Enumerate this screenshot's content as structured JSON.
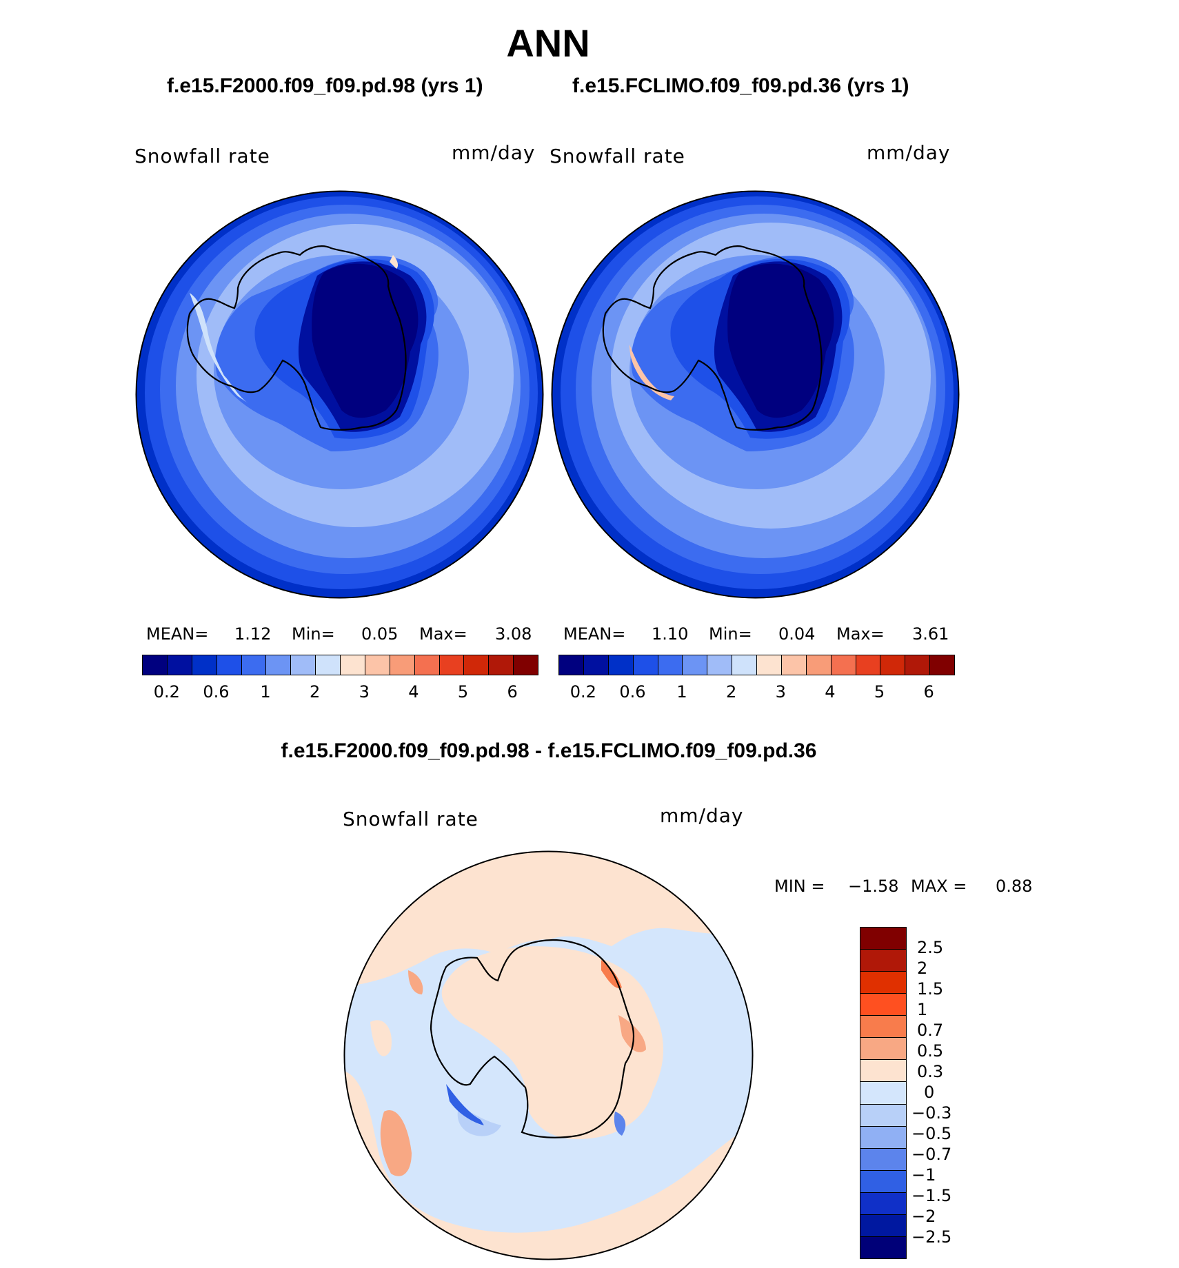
{
  "title": "ANN",
  "panels": [
    {
      "case": "f.e15.F2000.f09_f09.pd.98 (yrs 1)",
      "variable": "Snowfall rate",
      "units": "mm/day",
      "mean_label": "MEAN=",
      "mean": "1.12",
      "min_label": "Min=",
      "min": "0.05",
      "max_label": "Max=",
      "max": "3.08"
    },
    {
      "case": "f.e15.FCLIMO.f09_f09.pd.36 (yrs 1)",
      "variable": "Snowfall rate",
      "units": "mm/day",
      "mean_label": "MEAN=",
      "mean": "1.10",
      "min_label": "Min=",
      "min": "0.04",
      "max_label": "Max=",
      "max": "3.61"
    }
  ],
  "colorbar": {
    "colors": [
      "#00007f",
      "#0010a0",
      "#0030c8",
      "#1e50e8",
      "#3c6cf0",
      "#6c94f4",
      "#a0bcf8",
      "#cfe2fb",
      "#fde3d0",
      "#fcc4a8",
      "#f89c78",
      "#f47050",
      "#e84020",
      "#d02808",
      "#b01808",
      "#800000"
    ],
    "tick_labels": [
      "0.2",
      "0.6",
      "1",
      "2",
      "3",
      "4",
      "5",
      "6"
    ]
  },
  "diff": {
    "title": "f.e15.F2000.f09_f09.pd.98 - f.e15.FCLIMO.f09_f09.pd.36",
    "variable": "Snowfall rate",
    "units": "mm/day",
    "min_label": "MIN =",
    "min": "−1.58",
    "max_label": "MAX =",
    "max": "0.88",
    "colors_top_to_bottom": [
      "#800000",
      "#b01808",
      "#e03000",
      "#ff5020",
      "#f87c4c",
      "#f8a884",
      "#fde3d0",
      "#d4e6fc",
      "#b8d0f8",
      "#90b0f4",
      "#5c84ec",
      "#3060e4",
      "#1030c8",
      "#0018a0",
      "#000078"
    ],
    "tick_labels": [
      "2.5",
      "2",
      "1.5",
      "1",
      "0.7",
      "0.5",
      "0.3",
      "0",
      "−0.3",
      "−0.5",
      "−0.7",
      "−1",
      "−1.5",
      "−2",
      "−2.5"
    ]
  }
}
